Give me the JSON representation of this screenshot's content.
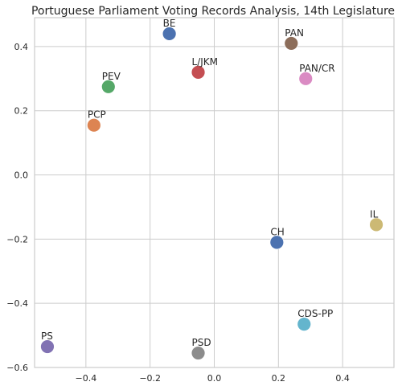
{
  "chart_data": {
    "type": "scatter",
    "title": "Portuguese Parliament Voting Records Analysis, 14th Legislature",
    "xlabel": "",
    "ylabel": "",
    "xlim": [
      -0.56,
      0.56
    ],
    "ylim": [
      -0.6,
      0.49
    ],
    "x_ticks": [
      -0.4,
      -0.2,
      0.0,
      0.2,
      0.4
    ],
    "x_tick_labels": [
      "−0.4",
      "−0.2",
      "0.0",
      "0.2",
      "0.4"
    ],
    "y_ticks": [
      -0.6,
      -0.4,
      -0.2,
      0.0,
      0.2,
      0.4
    ],
    "y_tick_labels": [
      "−0.6",
      "−0.4",
      "−0.2",
      "0.0",
      "0.2",
      "0.4"
    ],
    "grid": true,
    "points": [
      {
        "label": "BE",
        "x": -0.14,
        "y": 0.44,
        "color": "#4c72b0"
      },
      {
        "label": "PAN",
        "x": 0.24,
        "y": 0.41,
        "color": "#8c6d5a"
      },
      {
        "label": "L/JKM",
        "x": -0.05,
        "y": 0.32,
        "color": "#c44e52"
      },
      {
        "label": "PAN/CR",
        "x": 0.285,
        "y": 0.3,
        "color": "#da8bc3"
      },
      {
        "label": "PEV",
        "x": -0.33,
        "y": 0.275,
        "color": "#55a868"
      },
      {
        "label": "PCP",
        "x": -0.375,
        "y": 0.155,
        "color": "#dd8452"
      },
      {
        "label": "IL",
        "x": 0.505,
        "y": -0.155,
        "color": "#ccb974"
      },
      {
        "label": "CH",
        "x": 0.195,
        "y": -0.21,
        "color": "#4c72b0"
      },
      {
        "label": "CDS-PP",
        "x": 0.28,
        "y": -0.465,
        "color": "#64b5cd"
      },
      {
        "label": "PS",
        "x": -0.52,
        "y": -0.535,
        "color": "#8172b3"
      },
      {
        "label": "PSD",
        "x": -0.05,
        "y": -0.555,
        "color": "#8c8c8c"
      }
    ]
  }
}
